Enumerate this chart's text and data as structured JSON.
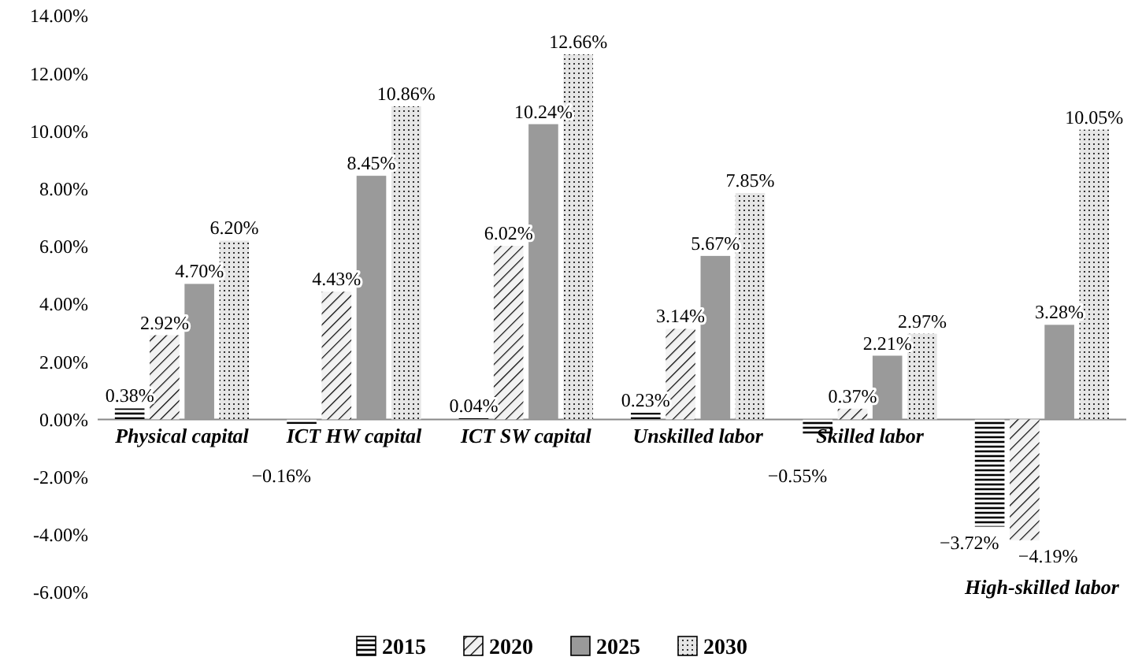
{
  "chart_data": {
    "type": "bar",
    "categories": [
      "Physical capital",
      "ICT HW capital",
      "ICT SW capital",
      "Unskilled labor",
      "Skilled labor",
      "High-skilled labor"
    ],
    "series": [
      {
        "name": "2015",
        "color": "#ffffff",
        "values": [
          0.38,
          -0.16,
          0.04,
          0.23,
          -0.55,
          -3.72
        ],
        "value_labels": [
          "0.38%",
          "−0.16%",
          "0.04%",
          "0.23%",
          "−0.55%",
          "−3.72%"
        ]
      },
      {
        "name": "2020",
        "color": "#f2f2f2",
        "values": [
          2.92,
          4.43,
          6.02,
          3.14,
          0.37,
          -4.19
        ],
        "value_labels": [
          "2.92%",
          "4.43%",
          "6.02%",
          "3.14%",
          "0.37%",
          "−4.19%"
        ]
      },
      {
        "name": "2025",
        "color": "#9a9a9a",
        "values": [
          4.7,
          8.45,
          10.24,
          5.67,
          2.21,
          3.28
        ],
        "value_labels": [
          "4.70%",
          "8.45%",
          "10.24%",
          "5.67%",
          "2.21%",
          "3.28%"
        ]
      },
      {
        "name": "2030",
        "color": "#e6e6e6",
        "values": [
          6.2,
          10.86,
          12.66,
          7.85,
          2.97,
          10.05
        ],
        "value_labels": [
          "6.20%",
          "10.86%",
          "12.66%",
          "7.85%",
          "2.97%",
          "10.05%"
        ]
      }
    ],
    "ylim": [
      -6,
      14
    ],
    "yticks": [
      {
        "value": -6,
        "label": "-6.00%"
      },
      {
        "value": -4,
        "label": "-4.00%"
      },
      {
        "value": -2,
        "label": "-2.00%"
      },
      {
        "value": 0,
        "label": "0.00%"
      },
      {
        "value": 2,
        "label": "2.00%"
      },
      {
        "value": 4,
        "label": "4.00%"
      },
      {
        "value": 6,
        "label": "6.00%"
      },
      {
        "value": 8,
        "label": "8.00%"
      },
      {
        "value": 10,
        "label": "10.00%"
      },
      {
        "value": 12,
        "label": "12.00%"
      },
      {
        "value": 14,
        "label": "14.00%"
      }
    ],
    "grid": false,
    "legend": "bottom"
  }
}
